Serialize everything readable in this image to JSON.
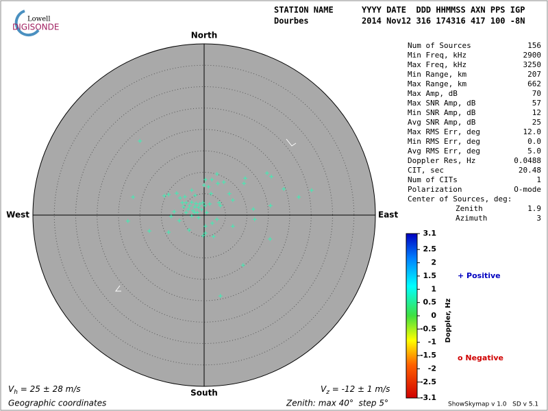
{
  "logo": {
    "top": "Lowell",
    "bottom": "DIGISONDE"
  },
  "header": {
    "station_label": "STATION NAME",
    "fields_label": "YYYY DATE  DDD HHMMSS AXN PPS IGP",
    "station": "Dourbes",
    "fields": "2014 Nov12 316 174316 417 100 -8N"
  },
  "stats": [
    [
      "Num of Sources",
      "156"
    ],
    [
      "Min Freq, kHz",
      "2900"
    ],
    [
      "Max Freq, kHz",
      "3250"
    ],
    [
      "Min Range, km",
      "207"
    ],
    [
      "Max Range, km",
      "662"
    ],
    [
      "Max Amp, dB",
      "70"
    ],
    [
      "Max SNR Amp, dB",
      "57"
    ],
    [
      "Min SNR Amp, dB",
      "12"
    ],
    [
      "Avg SNR Amp, dB",
      "25"
    ],
    [
      "Max RMS Err, deg",
      "12.0"
    ],
    [
      "Min RMS Err, deg",
      "0.0"
    ],
    [
      "Avg RMS Err, deg",
      "5.0"
    ],
    [
      "Doppler Res, Hz",
      "0.0488"
    ],
    [
      "CIT, sec",
      "20.48"
    ],
    [
      "Num of CITs",
      "1"
    ],
    [
      "Polarization",
      "O-mode"
    ]
  ],
  "center_label": "Center of Sources, deg:",
  "center": [
    [
      "Zenith",
      "1.9"
    ],
    [
      "Azimuth",
      "3"
    ]
  ],
  "legend": {
    "positive": "+ Positive",
    "negative": "o Negative"
  },
  "footer": {
    "vh_v": "V",
    "vh_sub": "h",
    "vh_rest": " = 25 ± 28 m/s",
    "vz_v": "V",
    "vz_sub": "z",
    "vz_rest": " = -12 ± 1 m/s",
    "coords": "Geographic coordinates",
    "zenith": "Zenith: max 40°  step 5°",
    "version": "ShowSkymap v 1.0   SD v 5.1"
  },
  "chart_data": {
    "type": "scatter",
    "directions": {
      "north": "North",
      "east": "East",
      "south": "South",
      "west": "West"
    },
    "color": "#3cf0b4",
    "xlim": [
      -40,
      40
    ],
    "ylim": [
      -40,
      40
    ],
    "rings": [
      5,
      10,
      15,
      20,
      25,
      30,
      35
    ],
    "x": [
      -15.0,
      -16.6,
      -17.8,
      -12.8,
      -8.3,
      -7.7,
      -7.0,
      -6.4,
      -5.6,
      -5.1,
      -4.8,
      -4.5,
      -4.2,
      -3.7,
      -3.4,
      -2.9,
      -2.6,
      -2.2,
      -1.9,
      -1.6,
      -1.3,
      -1.0,
      -0.6,
      -0.3,
      0.2,
      0.6,
      1.3,
      -2.9,
      -2.1,
      0.0,
      0.3,
      1.8,
      3.0,
      1.0,
      1.6,
      3.2,
      3.5,
      3.8,
      4.6,
      5.9,
      6.7,
      9.6,
      9.3,
      11.5,
      11.8,
      14.7,
      15.7,
      18.6,
      22.1,
      25.1,
      15.5,
      15.4,
      6.7,
      3.0,
      1.9,
      0.3,
      -0.2,
      2.2,
      -3.5,
      -5.8,
      -1.3,
      0.3,
      9.1,
      3.8,
      -2.2,
      -4.2,
      -2.9,
      -8.3,
      -9.3
    ],
    "y": [
      17.3,
      4.2,
      -1.4,
      -3.7,
      -4.0,
      -0.3,
      0.8,
      5.1,
      4.0,
      2.9,
      1.9,
      4.3,
      2.9,
      1.4,
      2.2,
      3.0,
      1.0,
      1.9,
      2.7,
      0.6,
      1.8,
      2.6,
      1.3,
      2.9,
      2.2,
      0.6,
      2.6,
      5.8,
      4.6,
      7.0,
      8.3,
      8.3,
      9.6,
      6.6,
      5.0,
      7.4,
      2.9,
      2.2,
      7.7,
      5.0,
      3.5,
      8.6,
      7.4,
      1.4,
      -1.0,
      9.8,
      9.0,
      6.1,
      4.2,
      5.8,
      2.2,
      -5.6,
      -2.6,
      -1.0,
      -1.9,
      -4.2,
      -4.8,
      -5.0,
      -3.5,
      -1.3,
      -0.6,
      -2.6,
      -11.7,
      -18.9,
      0.6,
      0.6,
      -0.2,
      4.8,
      4.5
    ],
    "colorbar": {
      "label": "Doppler, Hz",
      "lim": [
        -3.1,
        3.1
      ],
      "ticks": [
        3.1,
        2.5,
        2,
        1.5,
        1,
        0.5,
        0,
        -0.5,
        -1,
        -1.5,
        -2,
        -2.5,
        -3.1
      ]
    }
  }
}
